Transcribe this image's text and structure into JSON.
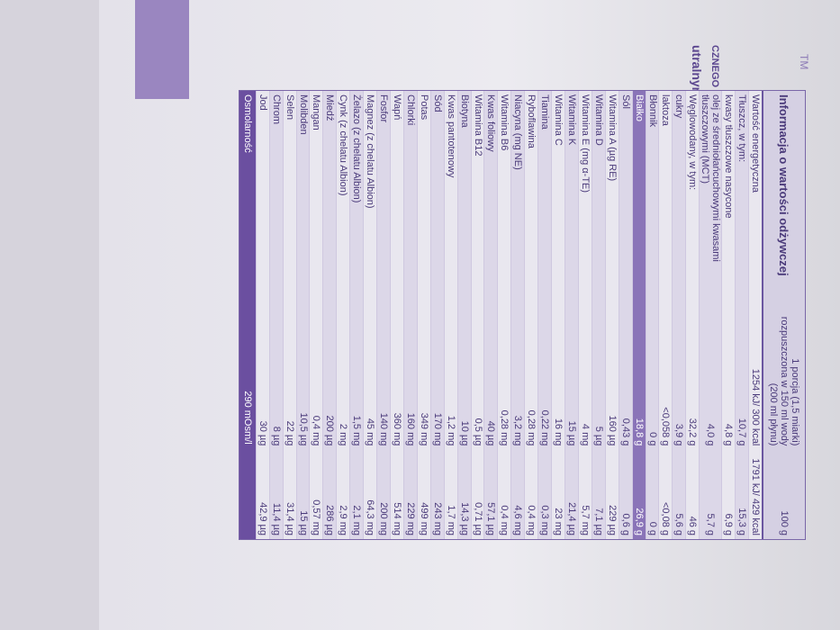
{
  "package": {
    "fragments": [
      "CZNEGO",
      "utralnym",
      "TM"
    ]
  },
  "table": {
    "title": "Informacja o wartości odżywczej",
    "columns": [
      "1 porcja (1,5 miarki) rozpuszczona w 150 ml wody (200 ml płynu)",
      "100 g"
    ],
    "rows": [
      {
        "name": "Wartość energetyczna",
        "portion": "1254 kJ/ 300 kcal",
        "per100": "1791 kJ/ 429 kcal"
      },
      {
        "name": "Tłuszcz, w tym:",
        "portion": "10,7 g",
        "per100": "15,3 g"
      },
      {
        "name": "kwasy tłuszczowe nasycone",
        "portion": "4,8 g",
        "per100": "6,9 g"
      },
      {
        "name": "olej ze średniołańcuchowymi kwasami tłuszczowymi (MCT)",
        "portion": "4,0 g",
        "per100": "5,7 g"
      },
      {
        "name": "Węglowodany, w tym:",
        "portion": "32,2 g",
        "per100": "46 g"
      },
      {
        "name": "cukry",
        "portion": "3,9 g",
        "per100": "5,6 g"
      },
      {
        "name": "laktoza",
        "portion": "<0,058 g",
        "per100": "<0,08 g"
      },
      {
        "name": "Błonnik",
        "portion": "0 g",
        "per100": "0 g"
      },
      {
        "name": "Białko",
        "portion": "18,8 g",
        "per100": "26,9 g",
        "highlight": true
      },
      {
        "name": "Sól",
        "portion": "0,43 g",
        "per100": "0,6 g"
      },
      {
        "name": "Witamina A (µg RE)",
        "portion": "160 µg",
        "per100": "229 µg"
      },
      {
        "name": "Witamina D",
        "portion": "5 µg",
        "per100": "7,1 µg"
      },
      {
        "name": "Witamina E (mg α-TE)",
        "portion": "4 mg",
        "per100": "5,7 mg"
      },
      {
        "name": "Witamina K",
        "portion": "15 µg",
        "per100": "21,4 µg"
      },
      {
        "name": "Witamina C",
        "portion": "16 mg",
        "per100": "23 mg"
      },
      {
        "name": "Tiamina",
        "portion": "0,22 mg",
        "per100": "0,3 mg"
      },
      {
        "name": "Ryboflawina",
        "portion": "0,28 mg",
        "per100": "0,4 mg"
      },
      {
        "name": "Niacyna (mg NE)",
        "portion": "3,2 mg",
        "per100": "4,6 mg"
      },
      {
        "name": "Witamina B6",
        "portion": "0,28 mg",
        "per100": "0,4 mg"
      },
      {
        "name": "Kwas foliowy",
        "portion": "40 µg",
        "per100": "57,1 µg"
      },
      {
        "name": "Witamina B12",
        "portion": "0,5 µg",
        "per100": "0,71 µg"
      },
      {
        "name": "Biotyna",
        "portion": "10 µg",
        "per100": "14,3 µg"
      },
      {
        "name": "Kwas pantotenowy",
        "portion": "1,2 mg",
        "per100": "1,7 mg"
      },
      {
        "name": "Sód",
        "portion": "170 mg",
        "per100": "243 mg"
      },
      {
        "name": "Potas",
        "portion": "349 mg",
        "per100": "499 mg"
      },
      {
        "name": "Chlorki",
        "portion": "160 mg",
        "per100": "229 mg"
      },
      {
        "name": "Wapń",
        "portion": "360 mg",
        "per100": "514 mg"
      },
      {
        "name": "Fosfor",
        "portion": "140 mg",
        "per100": "200 mg"
      },
      {
        "name": "Magnez (z chelatu Albion)",
        "portion": "45 mg",
        "per100": "64,3 mg"
      },
      {
        "name": "Żelazo (z chelatu Albion)",
        "portion": "1,5 mg",
        "per100": "2,1 mg"
      },
      {
        "name": "Cynk (z chelatu Albion)",
        "portion": "2 mg",
        "per100": "2,9 mg"
      },
      {
        "name": "Miedź",
        "portion": "200 µg",
        "per100": "286 µg"
      },
      {
        "name": "Mangan",
        "portion": "0,4 mg",
        "per100": "0,57 mg"
      },
      {
        "name": "Molibden",
        "portion": "10,5 µg",
        "per100": "15 µg"
      },
      {
        "name": "Selen",
        "portion": "22 µg",
        "per100": "31,4 µg"
      },
      {
        "name": "Chrom",
        "portion": "8 µg",
        "per100": "11,4 µg"
      },
      {
        "name": "Jod",
        "portion": "30 µg",
        "per100": "42,9 µg"
      }
    ],
    "footer": {
      "name": "Osmolarność",
      "value": "290 mOsm/l"
    }
  }
}
